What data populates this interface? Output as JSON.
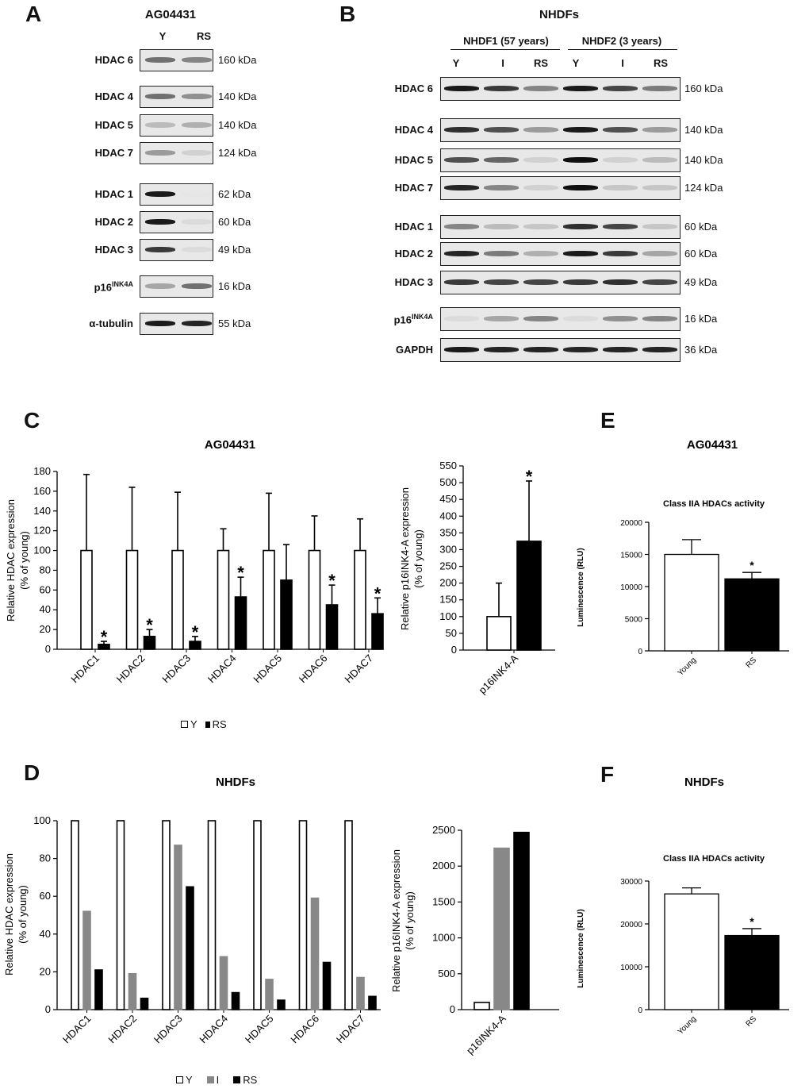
{
  "panels": {
    "A": "A",
    "B": "B",
    "C": "C",
    "D": "D",
    "E": "E",
    "F": "F"
  },
  "blotA": {
    "title": "AG04431",
    "lanes": [
      "Y",
      "RS"
    ],
    "rows": [
      {
        "label": "HDAC 6",
        "kda": "160 kDa",
        "bands": [
          0.55,
          0.45
        ]
      },
      {
        "label": "HDAC 4",
        "kda": "140 kDa",
        "bands": [
          0.55,
          0.4
        ]
      },
      {
        "label": "HDAC 5",
        "kda": "140 kDa",
        "bands": [
          0.2,
          0.25
        ]
      },
      {
        "label": "HDAC 7",
        "kda": "124 kDa",
        "bands": [
          0.35,
          0.1
        ]
      },
      {
        "label": "HDAC 1",
        "kda": "62 kDa",
        "bands": [
          0.95,
          0.0
        ]
      },
      {
        "label": "HDAC 2",
        "kda": "60 kDa",
        "bands": [
          0.95,
          0.05
        ]
      },
      {
        "label": "HDAC 3",
        "kda": "49 kDa",
        "bands": [
          0.8,
          0.05
        ]
      },
      {
        "label": "p16",
        "sup": "INK4A",
        "kda": "16 kDa",
        "bands": [
          0.3,
          0.55
        ]
      },
      {
        "label": "α-tubulin",
        "kda": "55 kDa",
        "bands": [
          0.95,
          0.9
        ]
      }
    ]
  },
  "blotB": {
    "title": "NHDFs",
    "groups": [
      "NHDF1 (57 years)",
      "NHDF2 (3 years)"
    ],
    "lanes": [
      "Y",
      "I",
      "RS",
      "Y",
      "I",
      "RS"
    ],
    "rows": [
      {
        "label": "HDAC 6",
        "kda": "160 kDa",
        "bands": [
          0.95,
          0.8,
          0.45,
          0.95,
          0.75,
          0.5
        ]
      },
      {
        "label": "HDAC 4",
        "kda": "140 kDa",
        "bands": [
          0.85,
          0.7,
          0.35,
          0.95,
          0.7,
          0.35
        ]
      },
      {
        "label": "HDAC 5",
        "kda": "140 kDa",
        "bands": [
          0.7,
          0.6,
          0.1,
          1.0,
          0.1,
          0.2
        ]
      },
      {
        "label": "HDAC 7",
        "kda": "124 kDa",
        "bands": [
          0.9,
          0.45,
          0.1,
          1.0,
          0.15,
          0.15
        ]
      },
      {
        "label": "HDAC 1",
        "kda": "60 kDa",
        "bands": [
          0.45,
          0.2,
          0.15,
          0.85,
          0.75,
          0.15
        ]
      },
      {
        "label": "HDAC 2",
        "kda": "60 kDa",
        "bands": [
          0.9,
          0.5,
          0.25,
          0.95,
          0.8,
          0.3
        ]
      },
      {
        "label": "HDAC 3",
        "kda": "49 kDa",
        "bands": [
          0.8,
          0.75,
          0.75,
          0.8,
          0.85,
          0.75
        ]
      },
      {
        "label": "p16",
        "sup": "INK4A",
        "kda": "16 kDa",
        "bands": [
          0.05,
          0.3,
          0.45,
          0.05,
          0.4,
          0.45
        ]
      },
      {
        "label": "GAPDH",
        "kda": "36 kDa",
        "bands": [
          0.95,
          0.9,
          0.9,
          0.9,
          0.9,
          0.9
        ]
      }
    ]
  },
  "chart_data": [
    {
      "id": "C-left",
      "type": "bar",
      "title": "AG04431",
      "ylabel": "Relative HDAC expression\n(% of young)",
      "ylim": [
        0,
        180
      ],
      "yticks": [
        0,
        20,
        40,
        60,
        80,
        100,
        120,
        140,
        160,
        180
      ],
      "categories": [
        "HDAC1",
        "HDAC2",
        "HDAC3",
        "HDAC4",
        "HDAC5",
        "HDAC6",
        "HDAC7"
      ],
      "series": [
        {
          "name": "Y",
          "color": "#ffffff",
          "values": [
            100,
            100,
            100,
            100,
            100,
            100,
            100
          ],
          "errors": [
            77,
            64,
            59,
            22,
            58,
            35,
            32
          ]
        },
        {
          "name": "RS",
          "color": "#000000",
          "values": [
            5,
            13,
            8,
            53,
            70,
            45,
            36
          ],
          "errors": [
            3,
            7,
            5,
            20,
            36,
            20,
            16
          ]
        }
      ],
      "significant": [
        false,
        true,
        false,
        true,
        false,
        true,
        false,
        true,
        false,
        false,
        false,
        true,
        false,
        true
      ],
      "legend": [
        "Y",
        "RS"
      ]
    },
    {
      "id": "C-right",
      "type": "bar",
      "ylabel": "Relative p16INK4-A expression\n(% of young)",
      "ylim": [
        0,
        550
      ],
      "yticks": [
        0,
        50,
        100,
        150,
        200,
        250,
        300,
        350,
        400,
        450,
        500,
        550
      ],
      "categories": [
        "p16INK4-A"
      ],
      "series": [
        {
          "name": "Y",
          "color": "#ffffff",
          "values": [
            100
          ],
          "errors": [
            100
          ]
        },
        {
          "name": "RS",
          "color": "#000000",
          "values": [
            325
          ],
          "errors": [
            180
          ]
        }
      ],
      "significant": [
        false,
        true
      ]
    },
    {
      "id": "E",
      "type": "bar",
      "title": "AG04431",
      "subtitle": "Class IIA HDACs activity",
      "ylabel": "Luminescence (RLU)",
      "ylim": [
        0,
        20000
      ],
      "yticks": [
        0,
        5000,
        10000,
        15000,
        20000
      ],
      "categories": [
        "Young",
        "RS"
      ],
      "series": [
        {
          "values": [
            15000,
            11200
          ],
          "errors": [
            2300,
            1000
          ],
          "colors": [
            "#ffffff",
            "#000000"
          ]
        }
      ],
      "significant": [
        false,
        true
      ]
    },
    {
      "id": "D-left",
      "type": "bar",
      "title": "NHDFs",
      "ylabel": "Relative HDAC expression\n(% of young)",
      "ylim": [
        0,
        100
      ],
      "yticks": [
        0,
        20,
        40,
        60,
        80,
        100
      ],
      "categories": [
        "HDAC1",
        "HDAC2",
        "HDAC3",
        "HDAC4",
        "HDAC5",
        "HDAC6",
        "HDAC7"
      ],
      "series": [
        {
          "name": "Y",
          "color": "#ffffff",
          "values": [
            100,
            100,
            100,
            100,
            100,
            100,
            100
          ]
        },
        {
          "name": "I",
          "color": "#888888",
          "values": [
            52,
            19,
            87,
            28,
            16,
            59,
            17
          ]
        },
        {
          "name": "RS",
          "color": "#000000",
          "values": [
            21,
            6,
            65,
            9,
            5,
            25,
            7
          ]
        }
      ],
      "legend": [
        "Y",
        "I",
        "RS"
      ]
    },
    {
      "id": "D-right",
      "type": "bar",
      "ylabel": "Relative p16INK4-A  expression\n(% of young)",
      "ylim": [
        0,
        2500
      ],
      "yticks": [
        0,
        500,
        1000,
        1500,
        2000,
        2500
      ],
      "categories": [
        "p16INK4-A"
      ],
      "series": [
        {
          "name": "Y",
          "color": "#ffffff",
          "values": [
            100
          ]
        },
        {
          "name": "I",
          "color": "#888888",
          "values": [
            2250
          ]
        },
        {
          "name": "RS",
          "color": "#000000",
          "values": [
            2470
          ]
        }
      ]
    },
    {
      "id": "F",
      "type": "bar",
      "title": "NHDFs",
      "subtitle": "Class IIA HDACs activity",
      "ylabel": "Luminescence (RLU)",
      "ylim": [
        0,
        30000
      ],
      "yticks": [
        0,
        10000,
        20000,
        30000
      ],
      "categories": [
        "Young",
        "RS"
      ],
      "series": [
        {
          "values": [
            27000,
            17300
          ],
          "errors": [
            1400,
            1600
          ],
          "colors": [
            "#ffffff",
            "#000000"
          ]
        }
      ],
      "significant": [
        false,
        true
      ]
    }
  ]
}
